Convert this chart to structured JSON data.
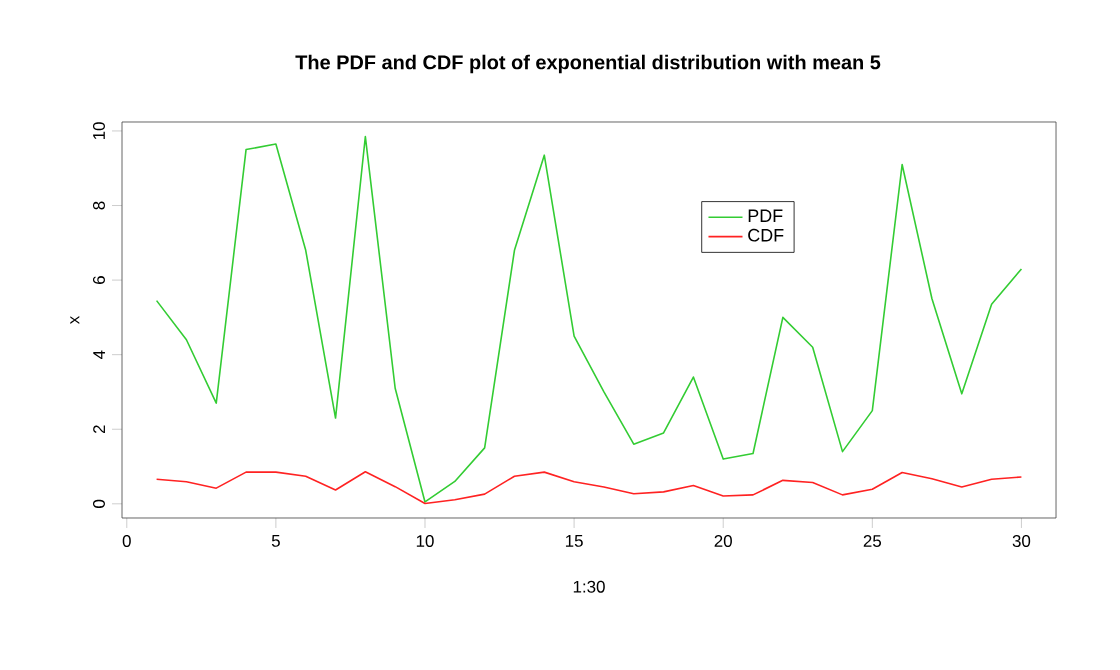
{
  "chart_data": {
    "type": "line",
    "title": "The PDF and CDF plot of exponential distribution with mean 5",
    "xlabel": "1:30",
    "ylabel": "x",
    "x": [
      1,
      2,
      3,
      4,
      5,
      6,
      7,
      8,
      9,
      10,
      11,
      12,
      13,
      14,
      15,
      16,
      17,
      18,
      19,
      20,
      21,
      22,
      23,
      24,
      25,
      26,
      27,
      28,
      29,
      30
    ],
    "series": [
      {
        "name": "PDF",
        "color": "#33cc33",
        "values": [
          5.45,
          4.4,
          2.7,
          9.5,
          9.65,
          6.8,
          2.3,
          9.85,
          3.1,
          0.05,
          0.6,
          1.5,
          6.8,
          9.35,
          4.5,
          3.0,
          1.6,
          1.9,
          3.4,
          1.2,
          1.35,
          5.0,
          4.2,
          1.4,
          2.5,
          9.1,
          5.5,
          2.95,
          5.35,
          6.3
        ]
      },
      {
        "name": "CDF",
        "color": "#ff2222",
        "values": [
          0.66,
          0.59,
          0.42,
          0.85,
          0.85,
          0.74,
          0.37,
          0.86,
          0.46,
          0.01,
          0.11,
          0.26,
          0.74,
          0.85,
          0.59,
          0.45,
          0.27,
          0.32,
          0.49,
          0.21,
          0.24,
          0.63,
          0.57,
          0.24,
          0.39,
          0.84,
          0.67,
          0.45,
          0.66,
          0.72
        ]
      }
    ],
    "xlim": [
      -0.16,
      31.16
    ],
    "ylim": [
      -0.38,
      10.24
    ],
    "xticks": [
      0,
      5,
      10,
      15,
      20,
      25,
      30
    ],
    "yticks": [
      0,
      2,
      4,
      6,
      8,
      10
    ],
    "grid": false,
    "legend": "top right",
    "marker": "none",
    "line_style": "solid"
  }
}
